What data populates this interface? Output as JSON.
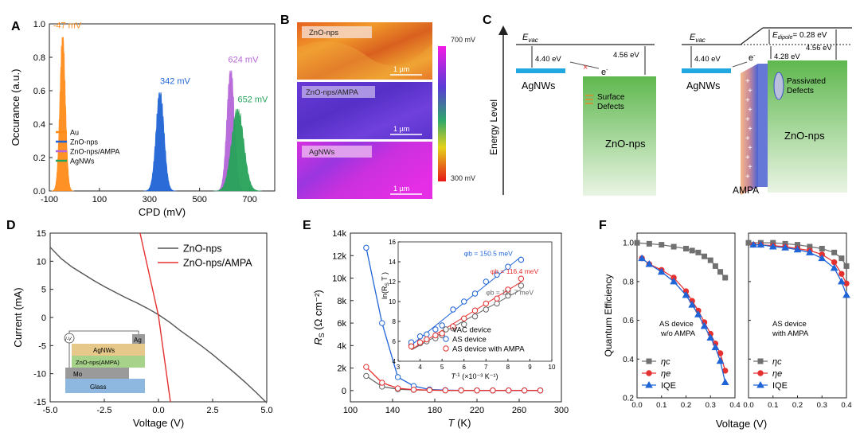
{
  "panel_labels": [
    "A",
    "B",
    "C",
    "D",
    "E",
    "F"
  ],
  "colors": {
    "au": "#ff8c1a",
    "zno": "#1f64d6",
    "ampa_purple": "#b566d9",
    "agnws_green": "#27a35a",
    "red": "#e53030",
    "gray": "#666666",
    "blue": "#1f64d6",
    "agnws_bar": "#22a8e0"
  },
  "panelB": {
    "images": [
      {
        "label": "ZnO-nps",
        "scale": "1 µm"
      },
      {
        "label": "ZnO-nps/AMPA",
        "scale": "1 µm"
      },
      {
        "label": "AgNWs",
        "scale": "1 µm"
      }
    ],
    "colorbar_top": "700 mV",
    "colorbar_bottom": "300 mV"
  },
  "panelC": {
    "ylabel": "Energy Level",
    "left": {
      "evac": "E",
      "evac_sub": "vac",
      "agnws_wf": "4.40 eV",
      "zno_wf": "4.56 eV",
      "agnws": "AgNWs",
      "defects_line1": "Surface",
      "defects_line2": "Defects",
      "zno": "ZnO-nps",
      "electron": "e",
      "electron_sup": "-",
      "blocked": "×"
    },
    "right": {
      "evac": "E",
      "evac_sub": "vac",
      "dipole_label": "E",
      "dipole_sub": "dipole",
      "dipole_value": "= 0.28 eV",
      "zno_wf": "4.56 eV",
      "agnws_wf": "4.40 eV",
      "shifted_wf": "4.28 eV",
      "agnws": "AgNWs",
      "passivated_line1": "Passivated",
      "passivated_line2": "Defects",
      "zno": "ZnO-nps",
      "ampa": "AMPA",
      "electron": "e",
      "electron_sup": "-",
      "plus": "+"
    }
  },
  "panelD_inset": {
    "iv": "I-V",
    "ag": "Ag",
    "agnws": "AgNWs",
    "zno": "ZnO-nps(AMPA)",
    "mo": "Mo",
    "glass": "Glass"
  },
  "panelF_subs": {
    "left_line1": "AS device",
    "left_line2": "w/o AMPA",
    "right_line1": "AS device",
    "right_line2": "with AMPA"
  },
  "chart_data": [
    {
      "id": "A",
      "type": "area",
      "xlabel": "CPD (mV)",
      "ylabel": "Occurance (a.u.)",
      "xlim": [
        -100,
        800
      ],
      "ylim": [
        0,
        1.0
      ],
      "xticks": [
        -100,
        100,
        300,
        500,
        700
      ],
      "yticks": [
        0.0,
        0.2,
        0.4,
        0.6,
        0.8,
        1.0
      ],
      "series": [
        {
          "name": "Au",
          "center": -47,
          "width": 11,
          "peak": 0.92,
          "color": "#ff8c1a",
          "label": "-47 mV"
        },
        {
          "name": "ZnO-nps",
          "center": 342,
          "width": 16,
          "peak": 0.59,
          "color": "#1f64d6",
          "label": "342 mV"
        },
        {
          "name": "ZnO-nps/AMPA",
          "center": 624,
          "width": 15,
          "peak": 0.72,
          "color": "#b566d9",
          "label": "624 mV"
        },
        {
          "name": "AgNWs",
          "center": 652,
          "width": 24,
          "peak": 0.49,
          "color": "#27a35a",
          "label": "652 mV"
        }
      ],
      "legend": "center-left"
    },
    {
      "id": "D",
      "type": "line",
      "xlabel": "Voltage (V)",
      "ylabel": "Current  (mA)",
      "xlim": [
        -5.0,
        5.0
      ],
      "ylim": [
        -15,
        15
      ],
      "xticks": [
        "-5.0",
        "-2.5",
        "0.0",
        "2.5",
        "5.0"
      ],
      "yticks": [
        -15,
        -10,
        -5,
        0,
        5,
        10,
        15
      ],
      "series": [
        {
          "name": "ZnO-nps",
          "color": "#555555",
          "x": [
            -5.0,
            -4.5,
            -4.0,
            -3.5,
            -3.0,
            -2.5,
            -2.0,
            -1.5,
            -1.0,
            -0.5,
            0.0,
            0.5,
            1.0,
            1.5,
            2.0,
            2.5,
            3.0,
            3.5,
            4.0,
            4.5,
            5.0
          ],
          "y": [
            12.5,
            10.5,
            9.0,
            7.8,
            6.6,
            5.5,
            4.5,
            3.5,
            2.6,
            1.6,
            0.5,
            -0.8,
            -2.3,
            -3.7,
            -5.1,
            -6.6,
            -8.2,
            -9.8,
            -11.5,
            -13.3,
            -15.2
          ]
        },
        {
          "name": "ZnO-nps/AMPA",
          "color": "#e53030",
          "x": [
            -0.85,
            0.0,
            0.55
          ],
          "y": [
            15.0,
            0.3,
            -15.0
          ]
        }
      ],
      "legend": "top-right"
    },
    {
      "id": "E",
      "type": "line",
      "xlabel": "T",
      "xlabel_unit": "(K)",
      "ylabel": "R",
      "ylabel_sub": "S",
      "ylabel_unit": "(Ω cm⁻²)",
      "xlim": [
        100,
        300
      ],
      "ylim": [
        -1000,
        14000
      ],
      "xticks": [
        100,
        140,
        180,
        220,
        260,
        300
      ],
      "yticks": [
        "0",
        "2k",
        "4k",
        "6k",
        "8k",
        "10k",
        "12k",
        "14k"
      ],
      "series": [
        {
          "name": "VAC device",
          "color": "#666666",
          "x": [
            115,
            130,
            145,
            160,
            175,
            190,
            205,
            220,
            235,
            250,
            265,
            280
          ],
          "y": [
            1300,
            350,
            120,
            60,
            30,
            20,
            15,
            10,
            10,
            10,
            10,
            10
          ]
        },
        {
          "name": "AS device",
          "color": "#1f64d6",
          "x": [
            115,
            130,
            145,
            160,
            175,
            190,
            205,
            220,
            235,
            250,
            265,
            280
          ],
          "y": [
            12700,
            6000,
            1200,
            400,
            100,
            40,
            20,
            15,
            10,
            10,
            10,
            10
          ]
        },
        {
          "name": "AS device with AMPA",
          "color": "#e53030",
          "x": [
            115,
            130,
            145,
            160,
            175,
            190,
            205,
            220,
            235,
            250,
            265,
            280
          ],
          "y": [
            2100,
            700,
            200,
            80,
            40,
            20,
            15,
            10,
            10,
            10,
            10,
            10
          ]
        }
      ],
      "inset": {
        "xlabel": "T",
        "xlabel_sup": "-1",
        "xlabel_unit": "(×10⁻³ K⁻¹)",
        "ylabel": "ln(R",
        "ylabel_sub": "S",
        "ylabel_tail": "T )",
        "xlim": [
          3,
          10
        ],
        "ylim": [
          4,
          16
        ],
        "xticks": [
          3,
          4,
          5,
          6,
          7,
          8,
          9,
          10
        ],
        "yticks": [
          4,
          6,
          8,
          10,
          12,
          14,
          16
        ],
        "annotations": [
          "φb = 150.5 meV",
          "φb = 116.4 meV",
          "φb = 111.7 meV"
        ],
        "series": [
          {
            "name": "VAC device",
            "color": "#666666",
            "x": [
              3.6,
              4.0,
              4.3,
              4.7,
              5.0,
              5.5,
              6.0,
              6.5,
              7.0,
              7.5,
              8.0,
              8.6
            ],
            "y": [
              5.6,
              5.8,
              6.0,
              6.3,
              6.6,
              7.3,
              7.7,
              8.5,
              9.2,
              9.8,
              10.6,
              11.6
            ]
          },
          {
            "name": "AS device",
            "color": "#1f64d6",
            "x": [
              3.6,
              4.0,
              4.3,
              4.7,
              5.0,
              5.5,
              6.0,
              6.5,
              7.0,
              7.5,
              8.0,
              8.6
            ],
            "y": [
              5.9,
              6.5,
              6.7,
              7.2,
              7.6,
              9.2,
              10.0,
              10.8,
              12.0,
              12.7,
              13.5,
              14.2
            ]
          },
          {
            "name": "AS device with AMPA",
            "color": "#e53030",
            "x": [
              3.6,
              4.0,
              4.3,
              4.7,
              5.0,
              5.5,
              6.0,
              6.5,
              7.0,
              7.5,
              8.0,
              8.6
            ],
            "y": [
              5.5,
              5.9,
              6.2,
              6.6,
              6.8,
              7.5,
              8.3,
              9.1,
              9.8,
              10.3,
              11.2,
              12.3
            ]
          }
        ],
        "legend": "bottom-right"
      }
    },
    {
      "id": "F",
      "type": "line",
      "xlabel": "Voltage (V)",
      "ylabel": "Quantum Efficiency",
      "xlim": [
        0.0,
        0.4
      ],
      "ylim": [
        0.2,
        1.05
      ],
      "xticks": [
        "0.0",
        "0.1",
        "0.2",
        "0.3",
        "0.4"
      ],
      "yticks": [
        "0.2",
        "0.4",
        "0.6",
        "0.8",
        "1.0"
      ],
      "subplots": [
        {
          "name": "w/o AMPA",
          "series": [
            {
              "name": "ηc",
              "color": "#707070",
              "marker": "square",
              "x": [
                0.0,
                0.05,
                0.1,
                0.15,
                0.2,
                0.225,
                0.25,
                0.275,
                0.3,
                0.32,
                0.34,
                0.36
              ],
              "y": [
                1.0,
                0.995,
                0.99,
                0.98,
                0.97,
                0.96,
                0.95,
                0.93,
                0.91,
                0.88,
                0.85,
                0.82
              ]
            },
            {
              "name": "ηe",
              "color": "#e53030",
              "marker": "circle",
              "x": [
                0.02,
                0.05,
                0.1,
                0.15,
                0.2,
                0.225,
                0.25,
                0.275,
                0.3,
                0.32,
                0.34,
                0.36
              ],
              "y": [
                0.92,
                0.89,
                0.86,
                0.82,
                0.75,
                0.7,
                0.65,
                0.59,
                0.53,
                0.48,
                0.43,
                0.34
              ]
            },
            {
              "name": "IQE",
              "color": "#1f64d6",
              "marker": "triangle",
              "x": [
                0.02,
                0.05,
                0.1,
                0.15,
                0.2,
                0.225,
                0.25,
                0.275,
                0.3,
                0.32,
                0.34,
                0.36
              ],
              "y": [
                0.92,
                0.89,
                0.85,
                0.8,
                0.73,
                0.68,
                0.63,
                0.57,
                0.51,
                0.46,
                0.39,
                0.28
              ]
            }
          ]
        },
        {
          "name": "with AMPA",
          "series": [
            {
              "name": "ηc",
              "color": "#707070",
              "marker": "square",
              "x": [
                0.0,
                0.05,
                0.1,
                0.15,
                0.2,
                0.25,
                0.3,
                0.35,
                0.38,
                0.4
              ],
              "y": [
                1.0,
                1.0,
                1.0,
                0.995,
                0.99,
                0.98,
                0.97,
                0.95,
                0.92,
                0.88
              ]
            },
            {
              "name": "ηe",
              "color": "#e53030",
              "marker": "circle",
              "x": [
                0.02,
                0.05,
                0.1,
                0.15,
                0.2,
                0.25,
                0.3,
                0.35,
                0.38,
                0.4
              ],
              "y": [
                0.99,
                0.99,
                0.985,
                0.98,
                0.97,
                0.96,
                0.94,
                0.9,
                0.84,
                0.79
              ]
            },
            {
              "name": "IQE",
              "color": "#1f64d6",
              "marker": "triangle",
              "x": [
                0.02,
                0.05,
                0.1,
                0.15,
                0.2,
                0.25,
                0.3,
                0.35,
                0.38,
                0.4
              ],
              "y": [
                0.99,
                0.99,
                0.98,
                0.975,
                0.965,
                0.95,
                0.92,
                0.87,
                0.8,
                0.73
              ]
            }
          ]
        }
      ],
      "legend": "bottom-left"
    }
  ]
}
